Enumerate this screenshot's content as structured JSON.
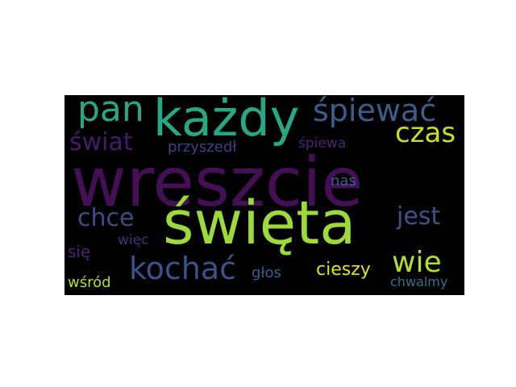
{
  "wordcloud": {
    "background": "#000000",
    "words": [
      {
        "text": "wreszcie",
        "color": "#440f54"
      },
      {
        "text": "święta",
        "color": "#9ed93a"
      },
      {
        "text": "każdy",
        "color": "#26a884"
      },
      {
        "text": "pan",
        "color": "#26a884"
      },
      {
        "text": "śpiewać",
        "color": "#3c5d8c"
      },
      {
        "text": "czas",
        "color": "#c8e020"
      },
      {
        "text": "świat",
        "color": "#481a6c"
      },
      {
        "text": "przyszedł",
        "color": "#433d84"
      },
      {
        "text": "śpiewa",
        "color": "#482475"
      },
      {
        "text": "chce",
        "color": "#3e4c8a"
      },
      {
        "text": "jest",
        "color": "#3b528b"
      },
      {
        "text": "nas",
        "color": "#355f8d"
      },
      {
        "text": "więc",
        "color": "#4b2b7a"
      },
      {
        "text": "się",
        "color": "#4a2475"
      },
      {
        "text": "kochać",
        "color": "#3b528b"
      },
      {
        "text": "wie",
        "color": "#b5de2b"
      },
      {
        "text": "głos",
        "color": "#355f8d"
      },
      {
        "text": "cieszy",
        "color": "#dfe318"
      },
      {
        "text": "wśród",
        "color": "#b5de2b"
      },
      {
        "text": "chwalmy",
        "color": "#2c728e"
      }
    ]
  }
}
